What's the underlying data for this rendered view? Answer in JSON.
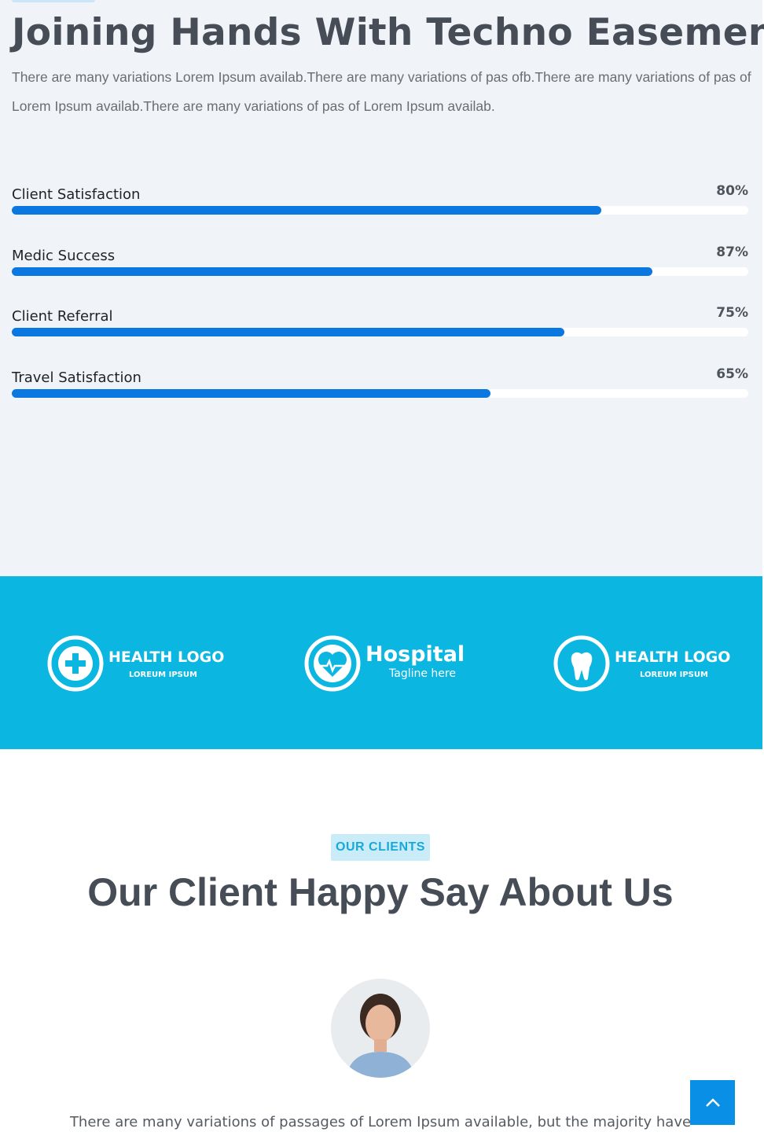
{
  "about": {
    "title": "Joining Hands With Techno Easement",
    "text": "There are many variations Lorem Ipsum availab.There are many variations of pas ofb.There are many variations of pas of Lorem Ipsum availab.There are many variations of pas of Lorem Ipsum availab.",
    "skills": [
      {
        "name": "Client Satisfaction",
        "value": 80,
        "label": "80%"
      },
      {
        "name": "Medic Success",
        "value": 87,
        "label": "87%"
      },
      {
        "name": "Client Referral",
        "value": 75,
        "label": "75%"
      },
      {
        "name": "Travel Satisfaction",
        "value": 65,
        "label": "65%"
      }
    ]
  },
  "logos": [
    {
      "name": "HEALTH LOGO",
      "tagline": "LOREUM IPSUM"
    },
    {
      "name": "Hospital",
      "tagline": "Tagline here"
    },
    {
      "name": "HEALTH LOGO",
      "tagline": "LOREUM IPSUM"
    }
  ],
  "clients": {
    "badge": "OUR CLIENTS",
    "title": "Our Client Happy Say About Us",
    "quote": "There are many variations of passages of Lorem Ipsum available, but the majority have"
  }
}
